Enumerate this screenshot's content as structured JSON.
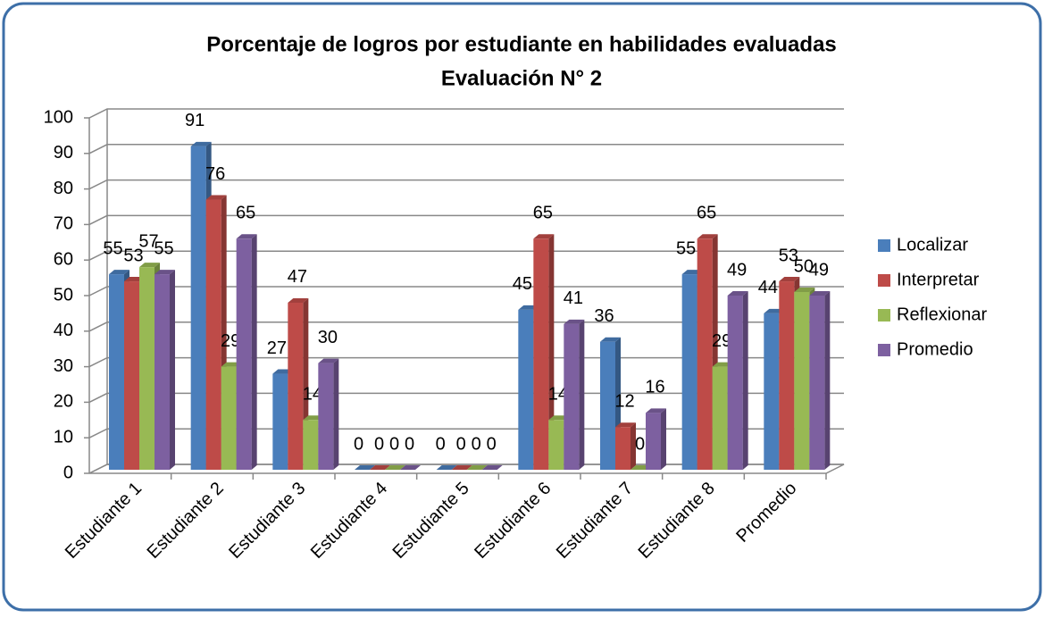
{
  "chart_data": {
    "type": "bar",
    "title": "Porcentaje de logros por estudiante en habilidades evaluadas",
    "subtitle": "Evaluación N° 2",
    "categories": [
      "Estudiante 1",
      "Estudiante 2",
      "Estudiante 3",
      "Estudiante 4",
      "Estudiante 5",
      "Estudiante 6",
      "Estudiante 7",
      "Estudiante 8",
      "Promedio"
    ],
    "series": [
      {
        "name": "Localizar",
        "color": "#4a7ebb",
        "values": [
          55,
          91,
          27,
          0,
          0,
          45,
          36,
          55,
          44
        ]
      },
      {
        "name": "Interpretar",
        "color": "#be4b48",
        "values": [
          53,
          76,
          47,
          0,
          0,
          65,
          12,
          65,
          53
        ]
      },
      {
        "name": "Reflexionar",
        "color": "#98b954",
        "values": [
          57,
          29,
          14,
          0,
          0,
          14,
          0,
          29,
          50
        ]
      },
      {
        "name": "Promedio",
        "color": "#7d60a0",
        "values": [
          55,
          65,
          30,
          0,
          0,
          41,
          16,
          49,
          49
        ]
      }
    ],
    "ylim": [
      0,
      100
    ],
    "yticks": [
      0,
      10,
      20,
      30,
      40,
      50,
      60,
      70,
      80,
      90,
      100
    ],
    "grid": true,
    "legend": "right"
  }
}
